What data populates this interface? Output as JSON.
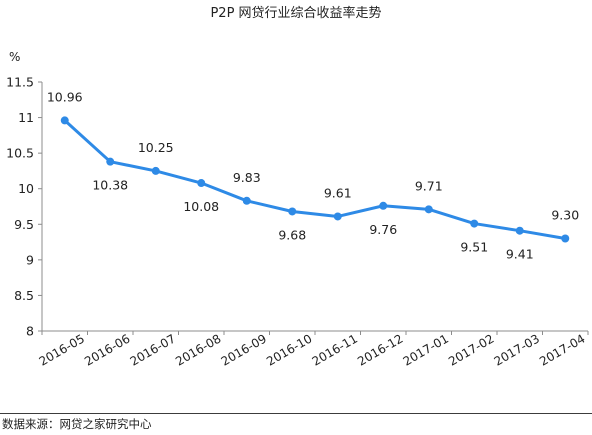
{
  "chart_data": {
    "type": "line",
    "title": "P2P 网贷行业综合收益率走势",
    "ylabel": "%",
    "xlabel": "",
    "categories": [
      "2016-05",
      "2016-06",
      "2016-07",
      "2016-08",
      "2016-09",
      "2016-10",
      "2016-11",
      "2016-12",
      "2017-01",
      "2017-02",
      "2017-03",
      "2017-04"
    ],
    "series": [
      {
        "values": [
          10.96,
          10.38,
          10.25,
          10.08,
          9.83,
          9.68,
          9.61,
          9.76,
          9.71,
          9.51,
          9.41,
          9.3
        ],
        "data_labels": [
          "10.96",
          "10.38",
          "10.25",
          "10.08",
          "9.83",
          "9.68",
          "9.61",
          "9.76",
          "9.71",
          "9.51",
          "9.41",
          "9.30"
        ],
        "label_side": [
          "above",
          "below",
          "above",
          "below",
          "above",
          "below",
          "above",
          "below",
          "above",
          "below",
          "below",
          "above"
        ]
      }
    ],
    "ylim": [
      8,
      11.5
    ],
    "yticks": [
      8,
      8.5,
      9,
      9.5,
      10,
      10.5,
      11,
      11.5
    ],
    "ytick_labels": [
      "8",
      "8.5",
      "9",
      "9.5",
      "10",
      "10.5",
      "11",
      "11.5"
    ],
    "grid": false,
    "line_color": "#2e8ae6"
  },
  "footer": {
    "source": "数据来源：网贷之家研究中心"
  }
}
